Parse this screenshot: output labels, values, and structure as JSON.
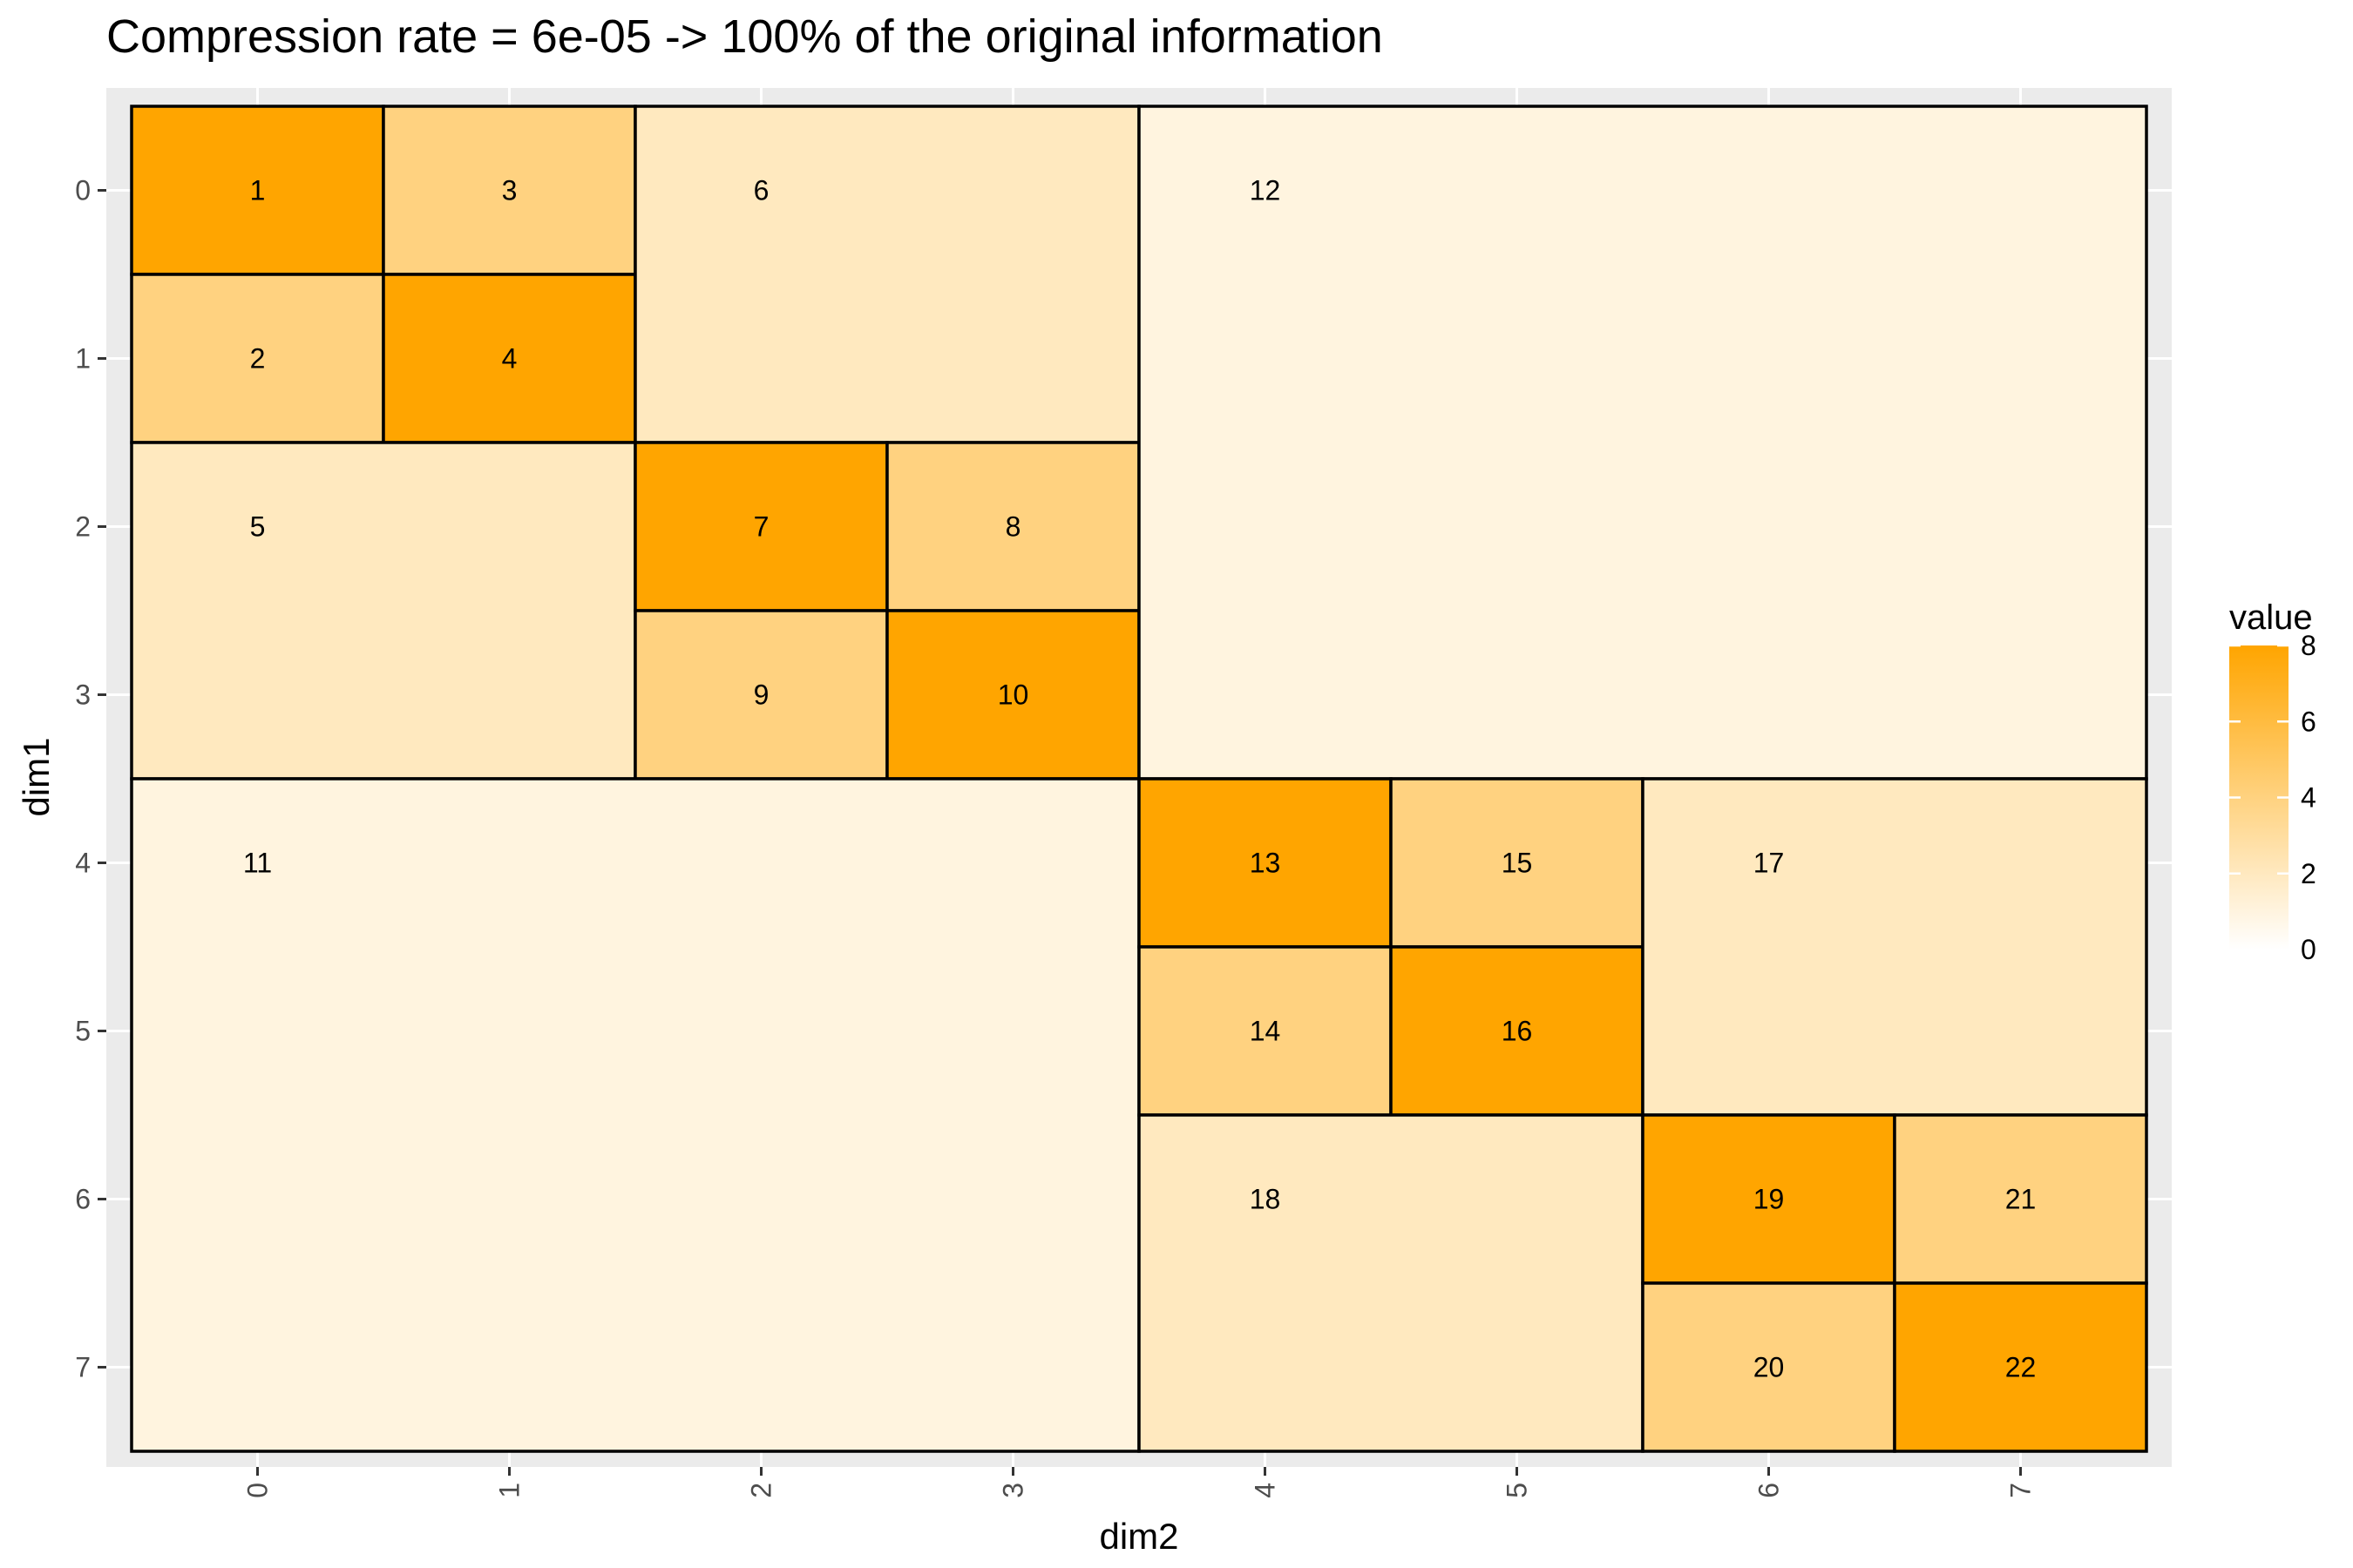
{
  "chart_data": {
    "type": "heatmap",
    "title": "Compression rate = 6e-05     ->     100% of the original information",
    "xlabel": "dim2",
    "ylabel": "dim1",
    "x_ticks": [
      "0",
      "1",
      "2",
      "3",
      "4",
      "5",
      "6",
      "7"
    ],
    "y_ticks": [
      "0",
      "1",
      "2",
      "3",
      "4",
      "5",
      "6",
      "7"
    ],
    "legend": {
      "title": "value",
      "ticks": [
        "0",
        "2",
        "4",
        "6",
        "8"
      ],
      "range": [
        0,
        8
      ],
      "low_color": "#ffffff",
      "high_color": "#ffa500",
      "placement": "right"
    },
    "blocks": [
      {
        "label": "1",
        "x0": 0,
        "x1": 0,
        "y0": 0,
        "y1": 0,
        "value": 8
      },
      {
        "label": "3",
        "x0": 1,
        "x1": 1,
        "y0": 0,
        "y1": 0,
        "value": 4
      },
      {
        "label": "2",
        "x0": 0,
        "x1": 0,
        "y0": 1,
        "y1": 1,
        "value": 4
      },
      {
        "label": "4",
        "x0": 1,
        "x1": 1,
        "y0": 1,
        "y1": 1,
        "value": 8
      },
      {
        "label": "6",
        "x0": 2,
        "x1": 3,
        "y0": 0,
        "y1": 1,
        "value": 2
      },
      {
        "label": "5",
        "x0": 0,
        "x1": 1,
        "y0": 2,
        "y1": 3,
        "value": 2
      },
      {
        "label": "7",
        "x0": 2,
        "x1": 2,
        "y0": 2,
        "y1": 2,
        "value": 8
      },
      {
        "label": "8",
        "x0": 3,
        "x1": 3,
        "y0": 2,
        "y1": 2,
        "value": 4
      },
      {
        "label": "9",
        "x0": 2,
        "x1": 2,
        "y0": 3,
        "y1": 3,
        "value": 4
      },
      {
        "label": "10",
        "x0": 3,
        "x1": 3,
        "y0": 3,
        "y1": 3,
        "value": 8
      },
      {
        "label": "12",
        "x0": 4,
        "x1": 7,
        "y0": 0,
        "y1": 3,
        "value": 1
      },
      {
        "label": "11",
        "x0": 0,
        "x1": 3,
        "y0": 4,
        "y1": 7,
        "value": 1
      },
      {
        "label": "13",
        "x0": 4,
        "x1": 4,
        "y0": 4,
        "y1": 4,
        "value": 8
      },
      {
        "label": "15",
        "x0": 5,
        "x1": 5,
        "y0": 4,
        "y1": 4,
        "value": 4
      },
      {
        "label": "14",
        "x0": 4,
        "x1": 4,
        "y0": 5,
        "y1": 5,
        "value": 4
      },
      {
        "label": "16",
        "x0": 5,
        "x1": 5,
        "y0": 5,
        "y1": 5,
        "value": 8
      },
      {
        "label": "17",
        "x0": 6,
        "x1": 7,
        "y0": 4,
        "y1": 5,
        "value": 2
      },
      {
        "label": "18",
        "x0": 4,
        "x1": 5,
        "y0": 6,
        "y1": 7,
        "value": 2
      },
      {
        "label": "19",
        "x0": 6,
        "x1": 6,
        "y0": 6,
        "y1": 6,
        "value": 8
      },
      {
        "label": "21",
        "x0": 7,
        "x1": 7,
        "y0": 6,
        "y1": 6,
        "value": 4
      },
      {
        "label": "20",
        "x0": 6,
        "x1": 6,
        "y0": 7,
        "y1": 7,
        "value": 4
      },
      {
        "label": "22",
        "x0": 7,
        "x1": 7,
        "y0": 7,
        "y1": 7,
        "value": 8
      }
    ]
  }
}
